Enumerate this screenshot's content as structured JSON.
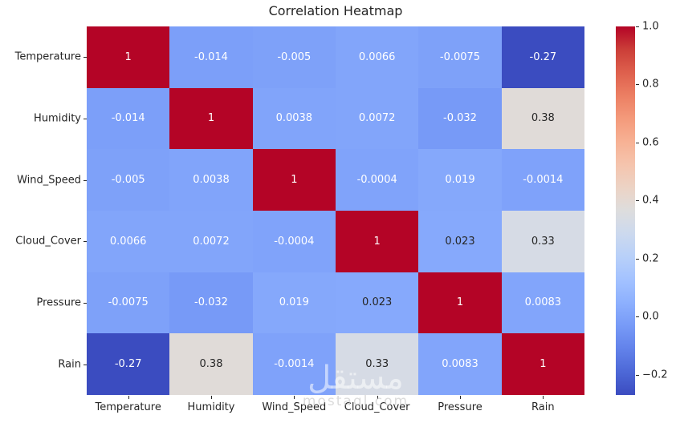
{
  "chart_data": {
    "type": "heatmap",
    "title": "Correlation Heatmap",
    "categories": [
      "Temperature",
      "Humidity",
      "Wind_Speed",
      "Cloud_Cover",
      "Pressure",
      "Rain"
    ],
    "matrix": [
      [
        1,
        -0.014,
        -0.005,
        0.0066,
        -0.0075,
        -0.27
      ],
      [
        -0.014,
        1,
        0.0038,
        0.0072,
        -0.032,
        0.38
      ],
      [
        -0.005,
        0.0038,
        1,
        -0.0004,
        0.019,
        -0.0014
      ],
      [
        0.0066,
        0.0072,
        -0.0004,
        1,
        0.023,
        0.33
      ],
      [
        -0.0075,
        -0.032,
        0.019,
        0.023,
        1,
        0.0083
      ],
      [
        -0.27,
        0.38,
        -0.0014,
        0.33,
        0.0083,
        1
      ]
    ],
    "colormap": "coolwarm",
    "vmin": -0.27,
    "vmax": 1.0,
    "grid": false,
    "legend_position": "right-colorbar",
    "colorbar": {
      "ticks": [
        1.0,
        0.8,
        0.6,
        0.4,
        0.2,
        0.0,
        -0.2
      ],
      "tick_labels": [
        "1.0",
        "0.8",
        "0.6",
        "0.4",
        "0.2",
        "0.0",
        "−0.2"
      ]
    },
    "colors": {
      "max_red": "#b40426",
      "min_blue": "#3b4cc0",
      "near_zero_blue": "#80a3fa",
      "midpoint_gray": "#dddcdc",
      "annotation_light": "#ffffff",
      "annotation_dark": "#262626",
      "axis_text": "#262626"
    }
  },
  "watermark": {
    "primary": "مستقل",
    "secondary": "mostaql.com"
  }
}
